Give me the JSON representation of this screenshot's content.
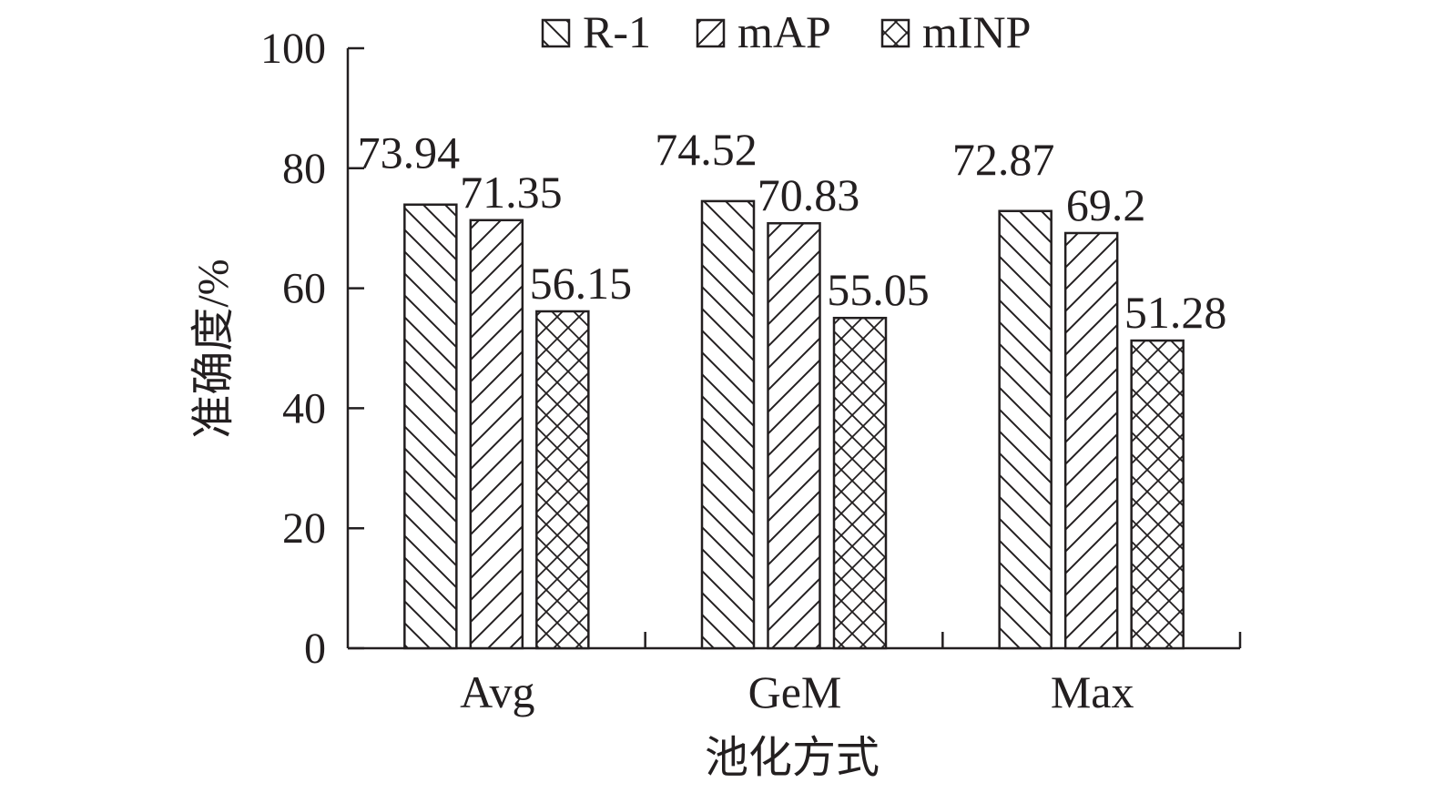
{
  "chart_data": {
    "type": "bar",
    "categories": [
      "Avg",
      "GeM",
      "Max"
    ],
    "series": [
      {
        "name": "R-1",
        "values": [
          73.94,
          74.52,
          72.87
        ],
        "pattern": "backslash"
      },
      {
        "name": "mAP",
        "values": [
          71.35,
          70.83,
          69.2
        ],
        "pattern": "slash"
      },
      {
        "name": "mINP",
        "values": [
          56.15,
          55.05,
          51.28
        ],
        "pattern": "crosshatch"
      }
    ],
    "value_labels": [
      [
        "73.94",
        "74.52",
        "72.87"
      ],
      [
        "71.35",
        "70.83",
        "69.2"
      ],
      [
        "56.15",
        "55.05",
        "51.28"
      ]
    ],
    "xlabel": "池化方式",
    "ylabel": "准确度/%",
    "ylim": [
      0,
      100
    ],
    "yticks": [
      "0",
      "20",
      "40",
      "60",
      "80",
      "100"
    ],
    "legend_position": "top",
    "grid": false,
    "colors": {
      "ink": "#231f20",
      "fill": "#ffffff"
    }
  }
}
